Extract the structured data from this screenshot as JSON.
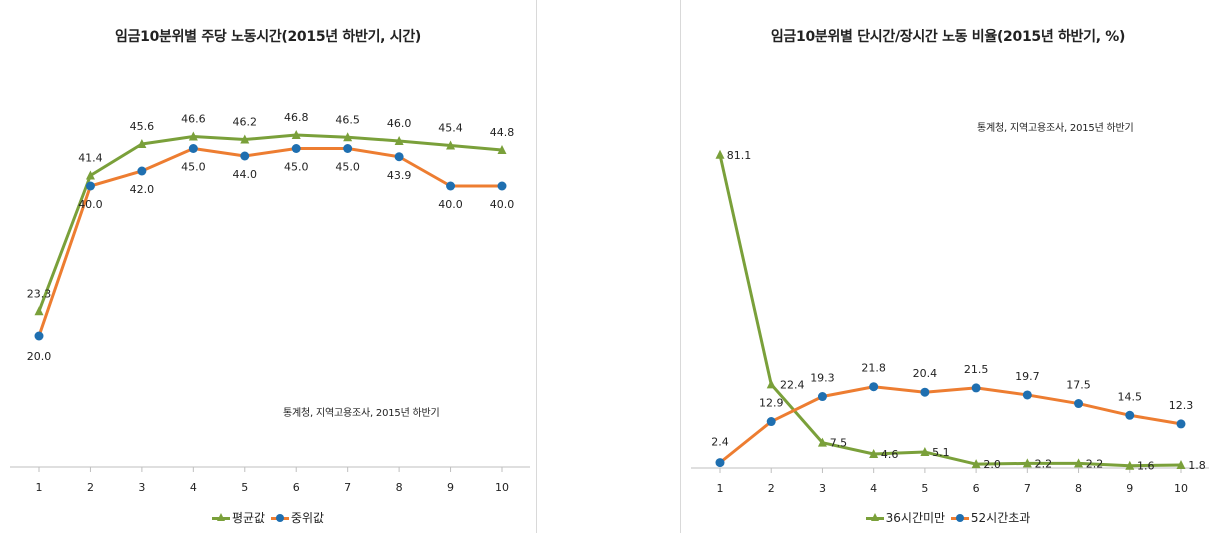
{
  "chart_data": [
    {
      "type": "line",
      "title": "임금10분위별 주당 노동시간(2015년 하반기, 시간)",
      "annotation": "통계청, 지역고용조사, 2015년 하반기",
      "x": [
        1,
        2,
        3,
        4,
        5,
        6,
        7,
        8,
        9,
        10
      ],
      "x_tick_labels": [
        "1",
        "2",
        "3",
        "4",
        "5",
        "6",
        "7",
        "8",
        "9",
        "10"
      ],
      "ylim": [
        0,
        50
      ],
      "grid": false,
      "legend": "bottom",
      "series": [
        {
          "name": "평균값",
          "color": "#7aa03a",
          "marker": "triangle",
          "values": [
            23.3,
            41.4,
            45.6,
            46.6,
            46.2,
            46.8,
            46.5,
            46.0,
            45.4,
            44.8
          ],
          "labels": [
            "23.3",
            "41.4",
            "45.6",
            "46.6",
            "46.2",
            "46.8",
            "46.5",
            "46.0",
            "45.4",
            "44.8"
          ]
        },
        {
          "name": "중위값",
          "color": "#ed7d31",
          "marker_color": "#1f6fb0",
          "marker": "circle",
          "values": [
            20.0,
            40.0,
            42.0,
            45.0,
            44.0,
            45.0,
            45.0,
            43.9,
            40.0,
            40.0
          ],
          "labels": [
            "20.0",
            "40.0",
            "42.0",
            "45.0",
            "44.0",
            "45.0",
            "45.0",
            "43.9",
            "40.0",
            "40.0"
          ]
        }
      ]
    },
    {
      "type": "line",
      "title": "임금10분위별 단시간/장시간 노동 비율(2015년 하반기, %)",
      "annotation": "통계청, 지역고용조사, 2015년 하반기",
      "x": [
        1,
        2,
        3,
        4,
        5,
        6,
        7,
        8,
        9,
        10
      ],
      "x_tick_labels": [
        "1",
        "2",
        "3",
        "4",
        "5",
        "6",
        "7",
        "8",
        "9",
        "10"
      ],
      "ylim": [
        0,
        90
      ],
      "grid": false,
      "legend": "bottom",
      "series": [
        {
          "name": "36시간미만",
          "color": "#7aa03a",
          "marker": "triangle",
          "values": [
            81.1,
            22.4,
            7.5,
            4.6,
            5.1,
            2.0,
            2.2,
            2.2,
            1.6,
            1.8
          ],
          "labels": [
            "81.1",
            "22.4",
            "7.5",
            "4.6",
            "5.1",
            "2.0",
            "2.2",
            "2.2",
            "1.6",
            "1.8"
          ]
        },
        {
          "name": "52시간초과",
          "color": "#ed7d31",
          "marker_color": "#1f6fb0",
          "marker": "circle",
          "values": [
            2.4,
            12.9,
            19.3,
            21.8,
            20.4,
            21.5,
            19.7,
            17.5,
            14.5,
            12.3
          ],
          "labels": [
            "2.4",
            "12.9",
            "19.3",
            "21.8",
            "20.4",
            "21.5",
            "19.7",
            "17.5",
            "14.5",
            "12.3"
          ]
        }
      ]
    }
  ]
}
